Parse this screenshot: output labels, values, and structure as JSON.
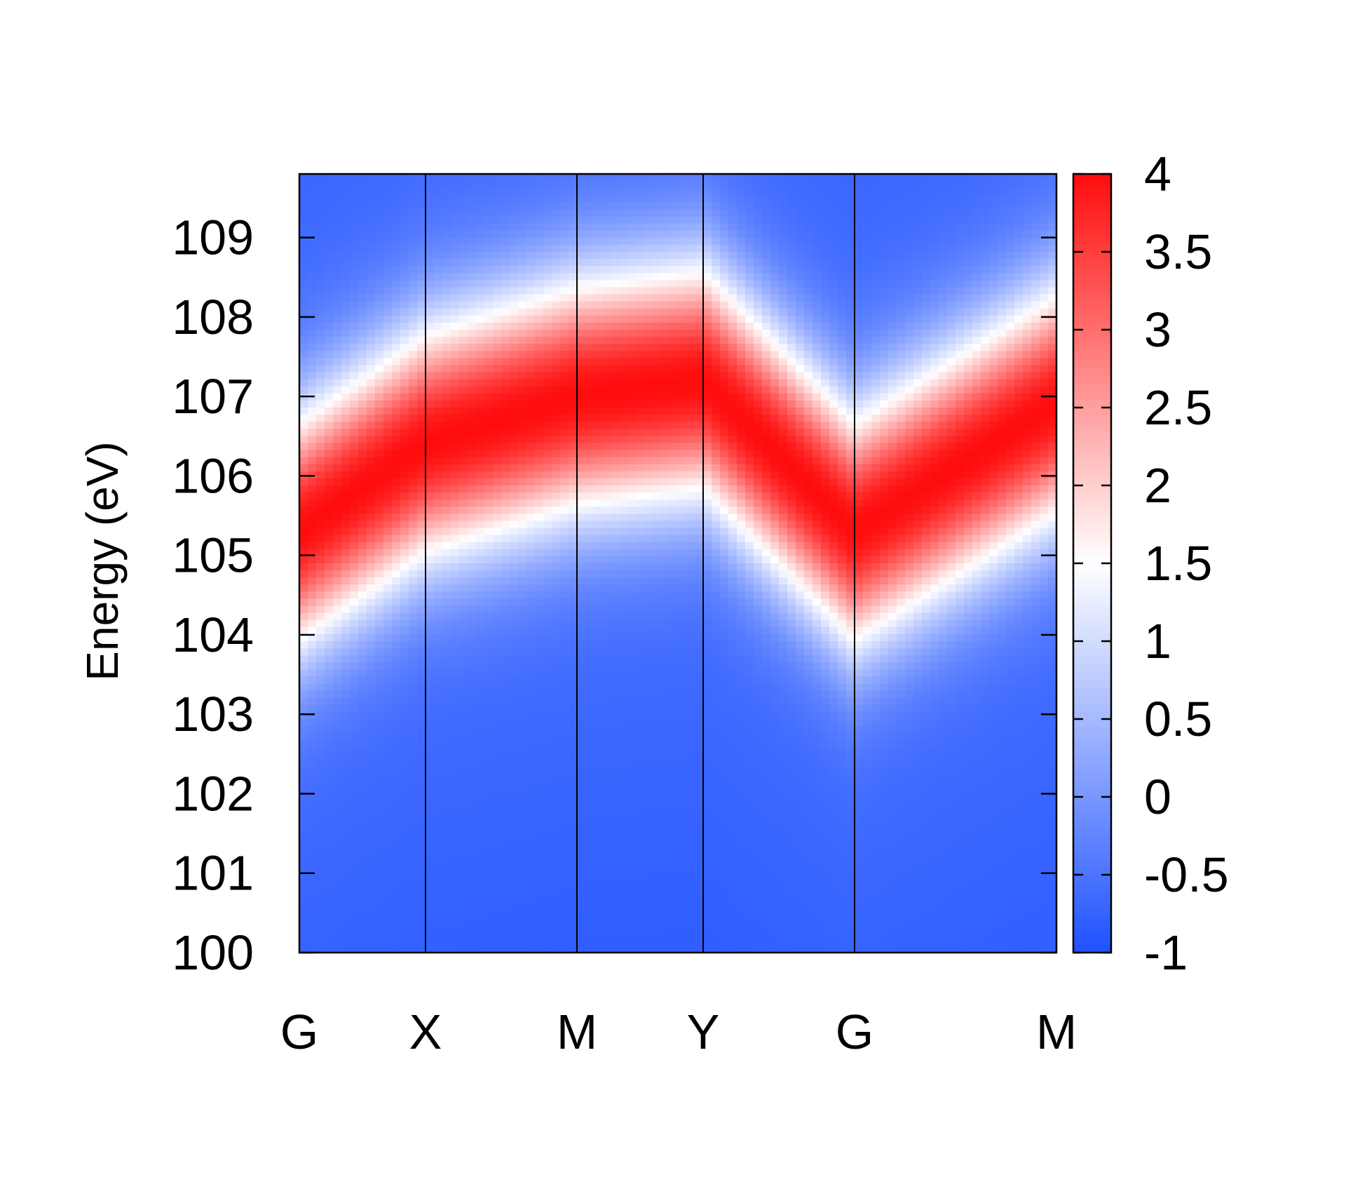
{
  "chart_data": {
    "type": "heatmap",
    "title": "",
    "xlabel": "",
    "ylabel": "Energy (eV)",
    "x_path_labels": [
      "G",
      "X",
      "M",
      "Y",
      "G",
      "M"
    ],
    "x_path_positions": [
      0,
      1,
      2.2,
      3.2,
      4.4,
      6
    ],
    "ylim": [
      100,
      109.8
    ],
    "y_ticks": [
      "100",
      "101",
      "102",
      "103",
      "104",
      "105",
      "106",
      "107",
      "108",
      "109"
    ],
    "y_tick_values": [
      100,
      101,
      102,
      103,
      104,
      105,
      106,
      107,
      108,
      109
    ],
    "colorbar": {
      "range": [
        -1,
        4
      ],
      "ticks": [
        "-1",
        "-0.5",
        "0",
        "0.5",
        "1",
        "1.5",
        "2",
        "2.5",
        "3",
        "3.5",
        "4"
      ],
      "tick_values": [
        -1,
        -0.5,
        0,
        0.5,
        1,
        1.5,
        2,
        2.5,
        3,
        3.5,
        4
      ],
      "colors": {
        "low": "#1f51ff",
        "mid": "#ffffff",
        "high": "#ff0d0d"
      }
    },
    "band_center": {
      "x": [
        0,
        1,
        2.2,
        3.2,
        4.4,
        6
      ],
      "energy": [
        105.3,
        106.4,
        107.0,
        107.2,
        105.3,
        106.9
      ]
    },
    "band_peak_value": 4,
    "grid": false,
    "legend": "colorbar-right"
  }
}
